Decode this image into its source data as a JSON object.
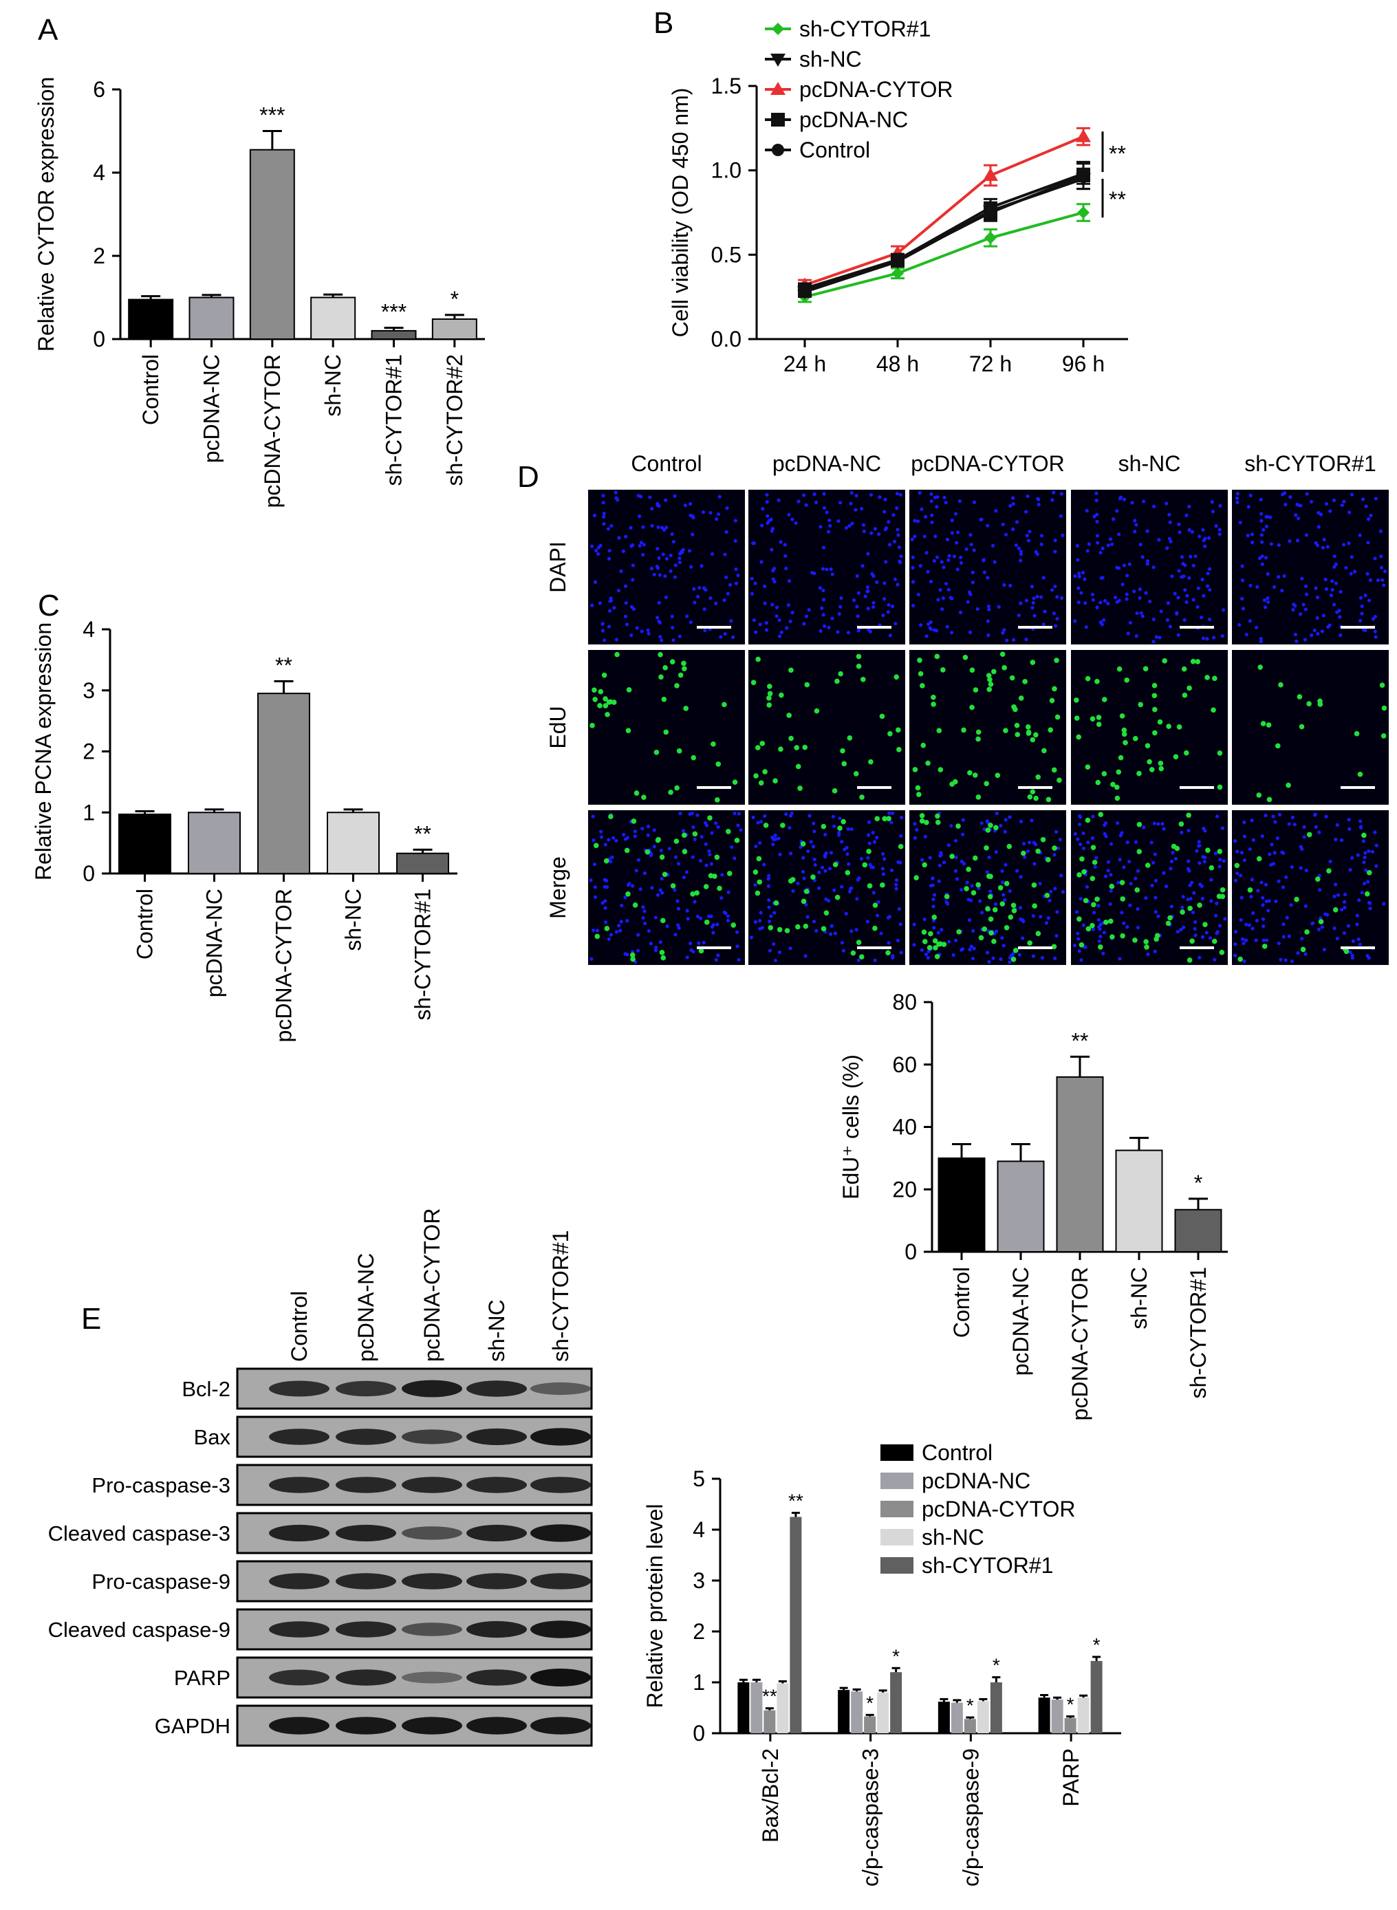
{
  "panel_letters": {
    "A": "A",
    "B": "B",
    "C": "C",
    "D": "D",
    "E": "E"
  },
  "chart_data": [
    {
      "panel": "A",
      "type": "bar",
      "ylabel": "Relative CYTOR expression",
      "ylim": [
        0,
        6
      ],
      "yticks": [
        "0",
        "2",
        "4",
        "6"
      ],
      "categories": [
        "Control",
        "pcDNA-NC",
        "pcDNA-CYTOR",
        "sh-NC",
        "sh-CYTOR#1",
        "sh-CYTOR#2"
      ],
      "values": [
        0.95,
        1.0,
        4.55,
        1.0,
        0.2,
        0.48
      ],
      "errors": [
        0.08,
        0.06,
        0.45,
        0.07,
        0.07,
        0.1
      ],
      "significance": [
        "",
        "",
        "***",
        "",
        "***",
        "*"
      ],
      "colors": [
        "#000000",
        "#a0a0a8",
        "#8c8c8c",
        "#d8d8d8",
        "#606060",
        "#b4b4b4"
      ]
    },
    {
      "panel": "B",
      "type": "line",
      "ylabel": "Cell viability (OD 450 nm)",
      "ylim": [
        0,
        1.5
      ],
      "yticks": [
        "0.0",
        "0.5",
        "1.0",
        "1.5"
      ],
      "categories": [
        "24 h",
        "48 h",
        "72 h",
        "96 h"
      ],
      "series": [
        {
          "name": "sh-CYTOR#1",
          "values": [
            0.25,
            0.39,
            0.6,
            0.75
          ],
          "errors": [
            0.03,
            0.03,
            0.05,
            0.05
          ],
          "color": "#22bb22",
          "marker": "diamond"
        },
        {
          "name": "sh-NC",
          "values": [
            0.28,
            0.46,
            0.76,
            0.95
          ],
          "errors": [
            0.03,
            0.03,
            0.05,
            0.06
          ],
          "color": "#111111",
          "marker": "triangle-down"
        },
        {
          "name": "pcDNA-CYTOR",
          "values": [
            0.32,
            0.51,
            0.97,
            1.2
          ],
          "errors": [
            0.03,
            0.04,
            0.06,
            0.05
          ],
          "color": "#e83030",
          "marker": "triangle-up"
        },
        {
          "name": "pcDNA-NC",
          "values": [
            0.29,
            0.47,
            0.75,
            0.97
          ],
          "errors": [
            0.03,
            0.03,
            0.05,
            0.08
          ],
          "color": "#111111",
          "marker": "square"
        },
        {
          "name": "Control",
          "values": [
            0.3,
            0.47,
            0.78,
            0.98
          ],
          "errors": [
            0.03,
            0.03,
            0.05,
            0.06
          ],
          "color": "#111111",
          "marker": "circle"
        }
      ],
      "significance": [
        "**",
        "**"
      ],
      "legend": "top-left"
    },
    {
      "panel": "C",
      "type": "bar",
      "ylabel": "Relative PCNA expression",
      "ylim": [
        0,
        4
      ],
      "yticks": [
        "0",
        "1",
        "2",
        "3",
        "4"
      ],
      "categories": [
        "Control",
        "pcDNA-NC",
        "pcDNA-CYTOR",
        "sh-NC",
        "sh-CYTOR#1"
      ],
      "values": [
        0.97,
        1.0,
        2.95,
        1.0,
        0.33
      ],
      "errors": [
        0.05,
        0.05,
        0.2,
        0.05,
        0.06
      ],
      "significance": [
        "",
        "",
        "**",
        "",
        "**"
      ],
      "colors": [
        "#000000",
        "#a0a0a8",
        "#8c8c8c",
        "#d8d8d8",
        "#606060"
      ]
    },
    {
      "panel": "D",
      "type": "bar",
      "ylabel": "EdU⁺ cells (%)",
      "ylim": [
        0,
        80
      ],
      "yticks": [
        "0",
        "20",
        "40",
        "60",
        "80"
      ],
      "categories": [
        "Control",
        "pcDNA-NC",
        "pcDNA-CYTOR",
        "sh-NC",
        "sh-CYTOR#1"
      ],
      "values": [
        30,
        29,
        56,
        32.5,
        13.5
      ],
      "errors": [
        4.5,
        5.5,
        6.5,
        4,
        3.5
      ],
      "significance": [
        "",
        "",
        "**",
        "",
        "*"
      ],
      "colors": [
        "#000000",
        "#a0a0a8",
        "#8c8c8c",
        "#d8d8d8",
        "#606060"
      ]
    },
    {
      "panel": "E",
      "type": "bar",
      "ylabel": "Relative protein level",
      "ylim": [
        0,
        5
      ],
      "yticks": [
        "0",
        "1",
        "2",
        "3",
        "4",
        "5"
      ],
      "categories": [
        "Bax/Bcl-2",
        "c/p-caspase-3",
        "c/p-caspase-9",
        "PARP"
      ],
      "series": [
        {
          "name": "Control",
          "values": [
            1.0,
            0.85,
            0.62,
            0.7
          ],
          "errors": [
            0.05,
            0.04,
            0.05,
            0.05
          ],
          "color": "#000000"
        },
        {
          "name": "pcDNA-NC",
          "values": [
            1.0,
            0.82,
            0.6,
            0.66
          ],
          "errors": [
            0.05,
            0.04,
            0.05,
            0.04
          ],
          "color": "#a0a0a8"
        },
        {
          "name": "pcDNA-CYTOR",
          "values": [
            0.45,
            0.33,
            0.28,
            0.3
          ],
          "errors": [
            0.04,
            0.03,
            0.03,
            0.03
          ],
          "color": "#8c8c8c"
        },
        {
          "name": "sh-NC",
          "values": [
            0.98,
            0.8,
            0.63,
            0.7
          ],
          "errors": [
            0.04,
            0.04,
            0.04,
            0.04
          ],
          "color": "#d8d8d8"
        },
        {
          "name": "sh-CYTOR#1",
          "values": [
            4.25,
            1.2,
            1.0,
            1.42
          ],
          "errors": [
            0.08,
            0.08,
            0.1,
            0.08
          ],
          "color": "#606060"
        }
      ],
      "significance": [
        [
          "",
          "",
          "**",
          "",
          "**"
        ],
        [
          "",
          "",
          "*",
          "",
          "*"
        ],
        [
          "",
          "",
          "*",
          "",
          "*"
        ],
        [
          "",
          "",
          "*",
          "",
          "*"
        ]
      ],
      "legend": "top-right"
    }
  ],
  "microscopy": {
    "columns": [
      "Control",
      "pcDNA-NC",
      "pcDNA-CYTOR",
      "sh-NC",
      "sh-CYTOR#1"
    ],
    "rows": [
      "DAPI",
      "EdU",
      "Merge"
    ]
  },
  "western_blot": {
    "lanes": [
      "Control",
      "pcDNA-NC",
      "pcDNA-CYTOR",
      "sh-NC",
      "sh-CYTOR#1"
    ],
    "rows": [
      {
        "label": "Bcl-2",
        "intensity": [
          0.75,
          0.7,
          0.9,
          0.8,
          0.35
        ]
      },
      {
        "label": "Bax",
        "intensity": [
          0.8,
          0.8,
          0.6,
          0.85,
          0.95
        ]
      },
      {
        "label": "Pro-caspase-3",
        "intensity": [
          0.8,
          0.8,
          0.8,
          0.8,
          0.8
        ]
      },
      {
        "label": "Cleaved caspase-3",
        "intensity": [
          0.85,
          0.85,
          0.45,
          0.85,
          0.95
        ]
      },
      {
        "label": "Pro-caspase-9",
        "intensity": [
          0.8,
          0.8,
          0.8,
          0.8,
          0.8
        ]
      },
      {
        "label": "Cleaved caspase-9",
        "intensity": [
          0.8,
          0.8,
          0.45,
          0.85,
          0.95
        ]
      },
      {
        "label": "PARP",
        "intensity": [
          0.75,
          0.8,
          0.25,
          0.8,
          1.0
        ]
      },
      {
        "label": "GAPDH",
        "intensity": [
          0.95,
          0.95,
          0.95,
          0.95,
          0.95
        ]
      }
    ]
  },
  "colors": {
    "axis": "#000000",
    "edu_green": "#22e03a",
    "dapi_blue": "#1a1aff",
    "blot_bg": "#a9a9a9"
  }
}
